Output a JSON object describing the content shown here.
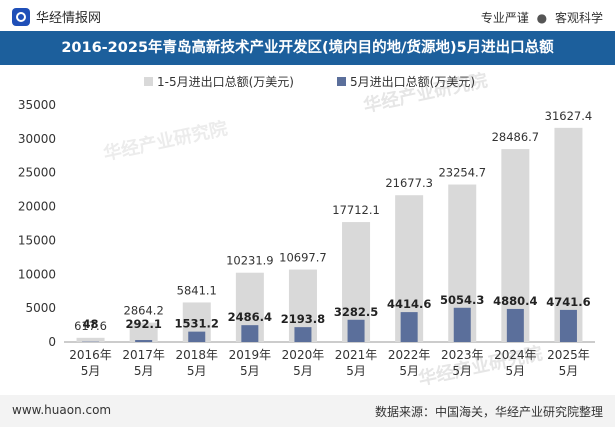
{
  "header": {
    "brand": "华经情报网",
    "tagline_left": "专业严谨",
    "tagline_sep": "●",
    "tagline_right": "客观科学"
  },
  "title": "2016-2025年青岛高新技术产业开发区(境内目的地/货源地)5月进出口总额",
  "watermark": "华经产业研究院",
  "footer": {
    "website": "www.huaon.com",
    "source": "数据来源：中国海关，华经产业研究院整理"
  },
  "colors": {
    "total_bar": "#d9d9d9",
    "may_bar": "#5b6f9b",
    "title_bg": "#1c5f9c"
  },
  "chart_data": {
    "type": "bar",
    "categories": [
      "2016年\n5月",
      "2017年\n5月",
      "2018年\n5月",
      "2019年\n5月",
      "2020年\n5月",
      "2021年\n5月",
      "2022年\n5月",
      "2023年\n5月",
      "2024年\n5月",
      "2025年\n5月"
    ],
    "series": [
      {
        "name": "1-5月进出口总额(万美元)",
        "values": [
          617.6,
          2864.2,
          5841.1,
          10231.9,
          10697.7,
          17712.1,
          21677.3,
          23254.7,
          28486.7,
          31627.4
        ]
      },
      {
        "name": "5月进出口总额(万美元)",
        "values": [
          48,
          292.1,
          1531.2,
          2486.4,
          2193.8,
          3282.5,
          4414.6,
          5054.3,
          4880.4,
          4741.6
        ]
      }
    ],
    "value_labels": [
      [
        "617.6",
        "2864.2",
        "5841.1",
        "10231.9",
        "10697.7",
        "17712.1",
        "21677.3",
        "23254.7",
        "28486.7",
        "31627.4"
      ],
      [
        "48",
        "292.1",
        "1531.2",
        "2486.4",
        "2193.8",
        "3282.5",
        "4414.6",
        "5054.3",
        "4880.4",
        "4741.6"
      ]
    ],
    "ylim": [
      0,
      35000
    ],
    "yticks": [
      0,
      5000,
      10000,
      15000,
      20000,
      25000,
      30000,
      35000
    ],
    "legend_position": "top-center",
    "grid": false
  }
}
